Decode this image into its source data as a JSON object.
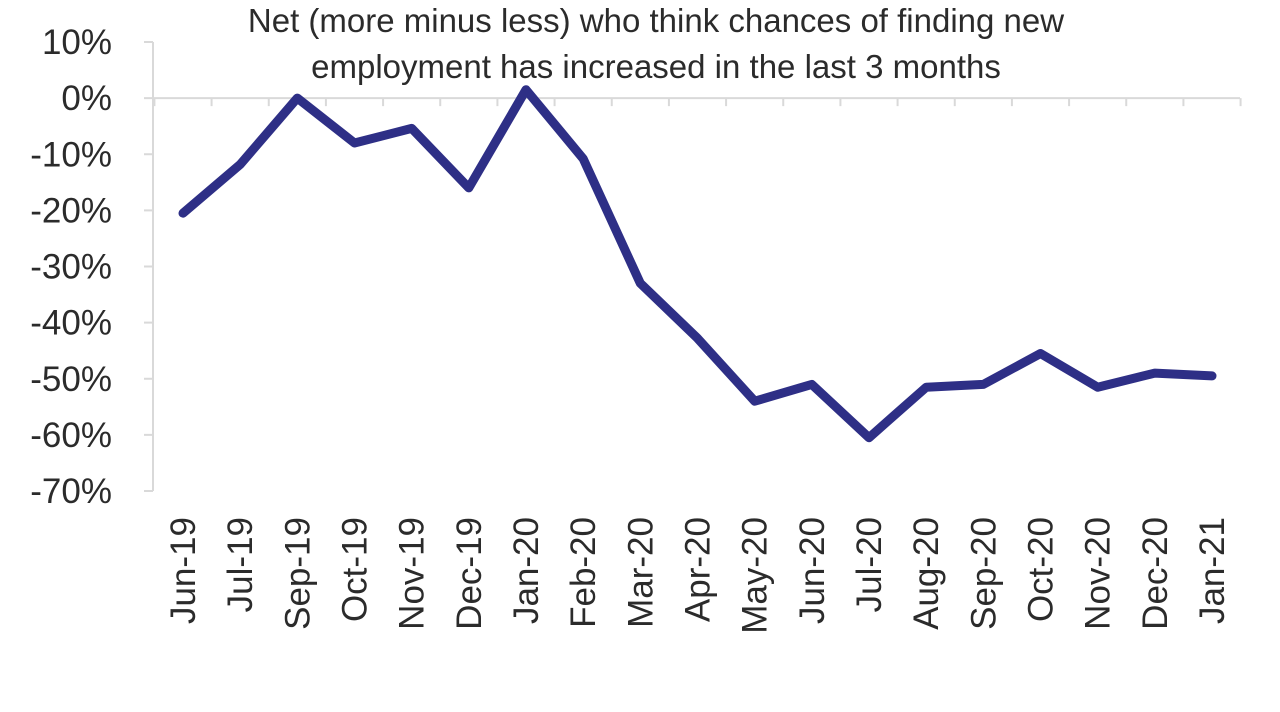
{
  "chart_data": {
    "type": "line",
    "title_lines": [
      "Net (more minus less) who think chances of finding new",
      "employment has increased in the last 3 months"
    ],
    "xlabel": "",
    "ylabel": "",
    "categories": [
      "Jun-19",
      "Jul-19",
      "Sep-19",
      "Oct-19",
      "Nov-19",
      "Dec-19",
      "Jan-20",
      "Feb-20",
      "Mar-20",
      "Apr-20",
      "May-20",
      "Jun-20",
      "Jul-20",
      "Aug-20",
      "Sep-20",
      "Oct-20",
      "Nov-20",
      "Dec-20",
      "Jan-21"
    ],
    "series": [
      {
        "values": [
          -20.5,
          -11.8,
          0,
          -8,
          -5.4,
          -16,
          1.5,
          -10.8,
          -33,
          -42.8,
          -54,
          -51,
          -60.5,
          -51.5,
          -51,
          -45.5,
          -51.5,
          -49,
          -49.5
        ],
        "color": "#2e2f86"
      }
    ],
    "ylim": [
      -70,
      10
    ],
    "yticks": [
      10,
      0,
      -10,
      -20,
      -30,
      -40,
      -50,
      -60,
      -70
    ],
    "ytick_labels": [
      "10%",
      "0%",
      "-10%",
      "-20%",
      "-30%",
      "-40%",
      "-50%",
      "-60%",
      "-70%"
    ],
    "grid": false,
    "legend": "none"
  }
}
